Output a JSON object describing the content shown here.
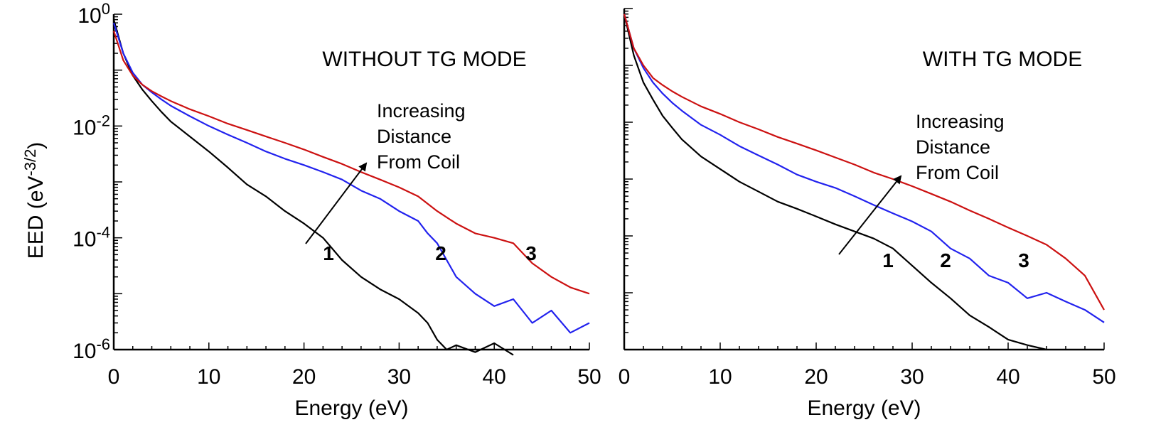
{
  "figure": {
    "ylabel_main": "EED (eV",
    "ylabel_exp": "-3/2",
    "ylabel_close": ")"
  },
  "colors": {
    "series_1": "#000000",
    "series_2": "#2222ee",
    "series_3": "#cc1111"
  },
  "chart_data": [
    {
      "type": "line",
      "title": "WITHOUT TG MODE",
      "xlabel": "Energy (eV)",
      "ylabel": "EED (eV-3/2)",
      "xlim": [
        0,
        50
      ],
      "ylim": [
        1e-06,
        1
      ],
      "yscale": "log",
      "x_ticks": [
        "0",
        "10",
        "20",
        "30",
        "40",
        "50"
      ],
      "y_ticks": [
        {
          "base": "10",
          "exp": "0"
        },
        {
          "base": "10",
          "exp": "-2"
        },
        {
          "base": "10",
          "exp": "-4"
        },
        {
          "base": "10",
          "exp": "-6"
        }
      ],
      "annotation": [
        "Increasing",
        "Distance",
        "From Coil"
      ],
      "series": [
        {
          "name": "1",
          "color": "#000000",
          "x": [
            0,
            1,
            2,
            3,
            4,
            5,
            6,
            8,
            10,
            12,
            14,
            16,
            18,
            20,
            22,
            24,
            26,
            28,
            30,
            32,
            33,
            34,
            35,
            36,
            38,
            40,
            42
          ],
          "y": [
            0.8,
            0.2,
            0.08,
            0.045,
            0.028,
            0.018,
            0.012,
            0.0065,
            0.0035,
            0.0018,
            0.0009,
            0.00055,
            0.0003,
            0.00018,
            0.0001,
            4e-05,
            2e-05,
            1.2e-05,
            8e-06,
            4.5e-06,
            3e-06,
            1.5e-06,
            1e-06,
            1.2e-06,
            9e-07,
            1.3e-06,
            8e-07
          ]
        },
        {
          "name": "2",
          "color": "#2222ee",
          "x": [
            0,
            1,
            2,
            3,
            4,
            5,
            6,
            8,
            10,
            12,
            14,
            16,
            18,
            20,
            22,
            24,
            26,
            28,
            30,
            32,
            33,
            34,
            35,
            36,
            38,
            40,
            42,
            44,
            46,
            48,
            50
          ],
          "y": [
            0.7,
            0.2,
            0.09,
            0.055,
            0.04,
            0.03,
            0.023,
            0.015,
            0.01,
            0.007,
            0.005,
            0.0035,
            0.0026,
            0.002,
            0.0015,
            0.0011,
            0.0007,
            0.0005,
            0.0003,
            0.0002,
            0.00012,
            8e-05,
            4e-05,
            2e-05,
            1e-05,
            6e-06,
            8e-06,
            3e-06,
            5e-06,
            2e-06,
            3e-06
          ]
        },
        {
          "name": "3",
          "color": "#cc1111",
          "x": [
            0,
            1,
            2,
            3,
            4,
            5,
            6,
            8,
            10,
            12,
            14,
            16,
            18,
            20,
            22,
            24,
            26,
            28,
            30,
            32,
            34,
            36,
            38,
            40,
            42,
            44,
            46,
            48,
            50
          ],
          "y": [
            0.5,
            0.15,
            0.08,
            0.055,
            0.042,
            0.034,
            0.028,
            0.02,
            0.015,
            0.011,
            0.0085,
            0.0065,
            0.005,
            0.0038,
            0.0028,
            0.0021,
            0.0015,
            0.0011,
            0.0008,
            0.00055,
            0.0003,
            0.00018,
            0.00012,
            0.0001,
            8e-05,
            3.5e-05,
            2e-05,
            1.3e-05,
            1e-05
          ]
        }
      ]
    },
    {
      "type": "line",
      "title": "WITH TG MODE",
      "xlabel": "Energy (eV)",
      "ylabel": "",
      "xlim": [
        0,
        50
      ],
      "ylim": [
        1e-06,
        1
      ],
      "yscale": "log",
      "x_ticks": [
        "0",
        "10",
        "20",
        "30",
        "40",
        "50"
      ],
      "y_ticks": [],
      "annotation": [
        "Increasing",
        "Distance",
        "From Coil"
      ],
      "series": [
        {
          "name": "1",
          "color": "#000000",
          "x": [
            0,
            1,
            2,
            3,
            4,
            5,
            6,
            8,
            10,
            12,
            14,
            16,
            18,
            20,
            22,
            24,
            26,
            28,
            30,
            32,
            34,
            36,
            38,
            40,
            42,
            44
          ],
          "y": [
            0.8,
            0.15,
            0.05,
            0.025,
            0.013,
            0.008,
            0.005,
            0.0025,
            0.0015,
            0.0009,
            0.0006,
            0.0004,
            0.0003,
            0.00022,
            0.00016,
            0.00012,
            9e-05,
            6e-05,
            3e-05,
            1.5e-05,
            8e-06,
            4e-06,
            2.5e-06,
            1.5e-06,
            1.2e-06,
            1e-06
          ]
        },
        {
          "name": "2",
          "color": "#2222ee",
          "x": [
            0,
            1,
            2,
            3,
            4,
            5,
            6,
            8,
            10,
            12,
            14,
            16,
            18,
            20,
            22,
            24,
            26,
            28,
            30,
            32,
            34,
            36,
            38,
            40,
            42,
            44,
            46,
            48,
            50
          ],
          "y": [
            0.8,
            0.2,
            0.09,
            0.05,
            0.032,
            0.022,
            0.016,
            0.009,
            0.006,
            0.0038,
            0.0026,
            0.0018,
            0.0012,
            0.0009,
            0.0007,
            0.0005,
            0.00035,
            0.00025,
            0.00018,
            0.00012,
            6e-05,
            4e-05,
            2e-05,
            1.5e-05,
            8e-06,
            1e-05,
            7e-06,
            5e-06,
            3e-06
          ]
        },
        {
          "name": "3",
          "color": "#cc1111",
          "x": [
            0,
            1,
            2,
            3,
            4,
            5,
            6,
            8,
            10,
            12,
            14,
            16,
            18,
            20,
            22,
            24,
            26,
            28,
            30,
            32,
            34,
            36,
            38,
            40,
            42,
            44,
            46,
            48,
            50
          ],
          "y": [
            0.8,
            0.2,
            0.1,
            0.06,
            0.045,
            0.035,
            0.028,
            0.019,
            0.014,
            0.01,
            0.0075,
            0.0055,
            0.0042,
            0.0032,
            0.0024,
            0.0018,
            0.0013,
            0.001,
            0.00075,
            0.00055,
            0.0004,
            0.00028,
            0.0002,
            0.00014,
            0.0001,
            7e-05,
            4e-05,
            2e-05,
            5e-06
          ]
        }
      ]
    }
  ]
}
